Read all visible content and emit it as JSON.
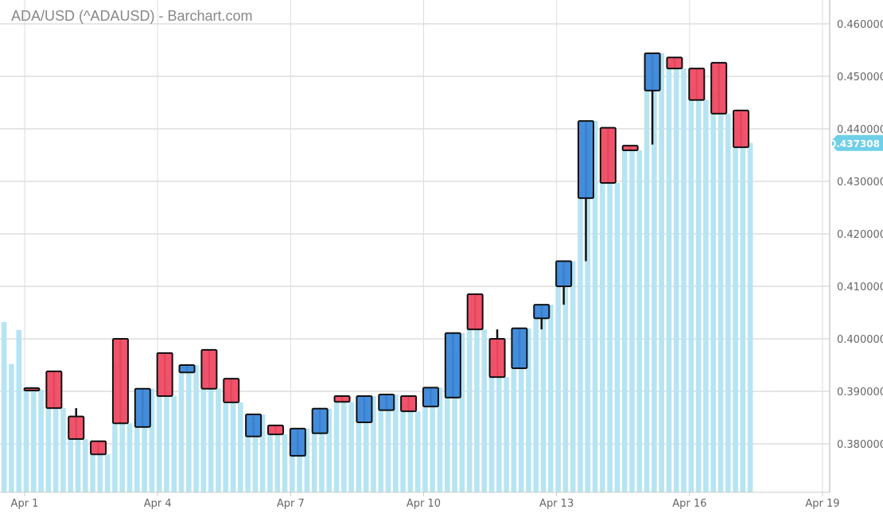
{
  "title": "ADA/USD (^ADAUSD) - Barchart.com",
  "chart_data": {
    "type": "candlestick",
    "title": "ADA/USD (^ADAUSD) - Barchart.com",
    "candle_interval_hours": 12,
    "ylim": [
      0.3715,
      0.4645
    ],
    "y_ticks": [
      "0.380000",
      "0.390000",
      "0.400000",
      "0.410000",
      "0.420000",
      "0.430000",
      "0.440000",
      "0.450000",
      "0.460000"
    ],
    "x_ticks": [
      "Apr 1",
      "Apr 4",
      "Apr 7",
      "Apr 10",
      "Apr 13",
      "Apr 16",
      "Apr 19"
    ],
    "grid": true,
    "last_price": "0.437308",
    "colors": {
      "up": "#3b87d9",
      "down": "#f04a63",
      "background_bars": "#b6e4f3",
      "last_price_tag": "#6fcfe8",
      "grid": "#dddddd"
    },
    "candles": [
      {
        "t": "Apr 1 00:00",
        "o": 0.3906,
        "h": 0.3906,
        "l": 0.3903,
        "c": 0.3903
      },
      {
        "t": "Apr 1 12:00",
        "o": 0.3938,
        "h": 0.3938,
        "l": 0.3868,
        "c": 0.3868
      },
      {
        "t": "Apr 2 00:00",
        "o": 0.3852,
        "h": 0.3868,
        "l": 0.3809,
        "c": 0.3809
      },
      {
        "t": "Apr 2 12:00",
        "o": 0.3805,
        "h": 0.3805,
        "l": 0.378,
        "c": 0.378
      },
      {
        "t": "Apr 3 00:00",
        "o": 0.4,
        "h": 0.4,
        "l": 0.3839,
        "c": 0.3839
      },
      {
        "t": "Apr 3 12:00",
        "o": 0.3832,
        "h": 0.3905,
        "l": 0.3832,
        "c": 0.3905
      },
      {
        "t": "Apr 4 00:00",
        "o": 0.3973,
        "h": 0.3973,
        "l": 0.3891,
        "c": 0.3891
      },
      {
        "t": "Apr 4 12:00",
        "o": 0.3936,
        "h": 0.395,
        "l": 0.3936,
        "c": 0.395
      },
      {
        "t": "Apr 5 00:00",
        "o": 0.3979,
        "h": 0.3979,
        "l": 0.3905,
        "c": 0.3905
      },
      {
        "t": "Apr 5 12:00",
        "o": 0.3924,
        "h": 0.3924,
        "l": 0.3879,
        "c": 0.3879
      },
      {
        "t": "Apr 6 00:00",
        "o": 0.3814,
        "h": 0.3856,
        "l": 0.3814,
        "c": 0.3856
      },
      {
        "t": "Apr 6 12:00",
        "o": 0.3835,
        "h": 0.3835,
        "l": 0.3818,
        "c": 0.3818
      },
      {
        "t": "Apr 7 00:00",
        "o": 0.3777,
        "h": 0.3829,
        "l": 0.3777,
        "c": 0.3829
      },
      {
        "t": "Apr 7 12:00",
        "o": 0.382,
        "h": 0.3867,
        "l": 0.382,
        "c": 0.3867
      },
      {
        "t": "Apr 8 00:00",
        "o": 0.3891,
        "h": 0.3891,
        "l": 0.388,
        "c": 0.388
      },
      {
        "t": "Apr 8 12:00",
        "o": 0.3841,
        "h": 0.3891,
        "l": 0.3841,
        "c": 0.3891
      },
      {
        "t": "Apr 9 00:00",
        "o": 0.3864,
        "h": 0.3894,
        "l": 0.3864,
        "c": 0.3894
      },
      {
        "t": "Apr 9 12:00",
        "o": 0.3891,
        "h": 0.3891,
        "l": 0.3862,
        "c": 0.3862
      },
      {
        "t": "Apr 10 00:00",
        "o": 0.3871,
        "h": 0.3907,
        "l": 0.3871,
        "c": 0.3907
      },
      {
        "t": "Apr 10 12:00",
        "o": 0.3888,
        "h": 0.4011,
        "l": 0.3888,
        "c": 0.4011
      },
      {
        "t": "Apr 11 00:00",
        "o": 0.4085,
        "h": 0.4085,
        "l": 0.4018,
        "c": 0.4018
      },
      {
        "t": "Apr 11 12:00",
        "o": 0.4,
        "h": 0.4018,
        "l": 0.3927,
        "c": 0.3927
      },
      {
        "t": "Apr 12 00:00",
        "o": 0.3944,
        "h": 0.402,
        "l": 0.3944,
        "c": 0.402
      },
      {
        "t": "Apr 12 12:00",
        "o": 0.4039,
        "h": 0.4065,
        "l": 0.4018,
        "c": 0.4065
      },
      {
        "t": "Apr 13 00:00",
        "o": 0.41,
        "h": 0.4148,
        "l": 0.4065,
        "c": 0.4148
      },
      {
        "t": "Apr 13 12:00",
        "o": 0.4268,
        "h": 0.4415,
        "l": 0.4148,
        "c": 0.4415
      },
      {
        "t": "Apr 14 00:00",
        "o": 0.4402,
        "h": 0.4402,
        "l": 0.4297,
        "c": 0.4297
      },
      {
        "t": "Apr 14 12:00",
        "o": 0.4368,
        "h": 0.4368,
        "l": 0.4359,
        "c": 0.4359
      },
      {
        "t": "Apr 15 00:00",
        "o": 0.4473,
        "h": 0.4544,
        "l": 0.437,
        "c": 0.4544
      },
      {
        "t": "Apr 15 12:00",
        "o": 0.4536,
        "h": 0.4536,
        "l": 0.4515,
        "c": 0.4515
      },
      {
        "t": "Apr 16 00:00",
        "o": 0.4515,
        "h": 0.4515,
        "l": 0.4455,
        "c": 0.4455
      },
      {
        "t": "Apr 16 12:00",
        "o": 0.4526,
        "h": 0.4526,
        "l": 0.4429,
        "c": 0.4429
      },
      {
        "t": "Apr 17 00:00",
        "o": 0.4435,
        "h": 0.4435,
        "l": 0.4365,
        "c": 0.4365
      }
    ],
    "background_bars": {
      "start": "Mar 31 12:00",
      "interval_hours": 4,
      "values": [
        0.4032,
        0.3952,
        0.4017,
        0.3905,
        0.3904,
        0.3903,
        0.39,
        0.388,
        0.3868,
        0.383,
        0.3815,
        0.3809,
        0.3795,
        0.3785,
        0.378,
        0.395,
        0.387,
        0.3839,
        0.385,
        0.387,
        0.3905,
        0.393,
        0.39,
        0.3891,
        0.394,
        0.3945,
        0.395,
        0.395,
        0.392,
        0.3905,
        0.39,
        0.389,
        0.3879,
        0.383,
        0.384,
        0.3856,
        0.383,
        0.3825,
        0.3818,
        0.379,
        0.3805,
        0.3829,
        0.3835,
        0.385,
        0.3867,
        0.3885,
        0.3882,
        0.388,
        0.386,
        0.388,
        0.3891,
        0.3875,
        0.3885,
        0.3894,
        0.388,
        0.387,
        0.3862,
        0.3885,
        0.3895,
        0.3907,
        0.395,
        0.398,
        0.4011,
        0.405,
        0.403,
        0.4018,
        0.397,
        0.394,
        0.3927,
        0.398,
        0.4,
        0.402,
        0.4045,
        0.4055,
        0.4065,
        0.412,
        0.4135,
        0.4148,
        0.428,
        0.44,
        0.4415,
        0.435,
        0.432,
        0.4297,
        0.4362,
        0.436,
        0.4359,
        0.448,
        0.451,
        0.4544,
        0.4525,
        0.452,
        0.4515,
        0.448,
        0.4465,
        0.4455,
        0.447,
        0.444,
        0.4429,
        0.44,
        0.438,
        0.4373
      ]
    }
  }
}
